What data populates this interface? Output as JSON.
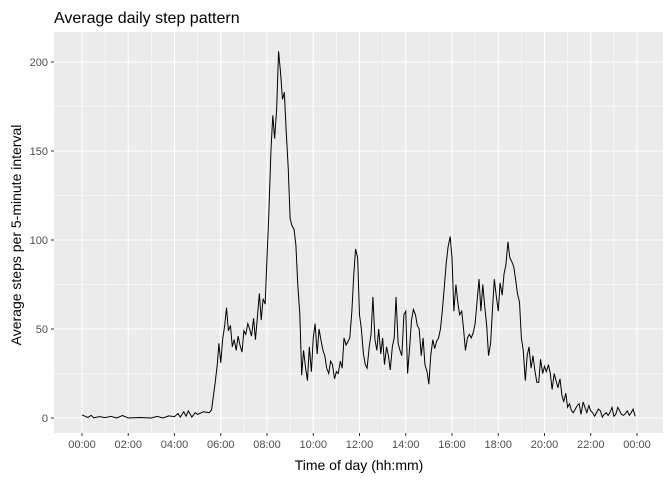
{
  "chart_data": {
    "type": "line",
    "title": "Average daily step pattern",
    "xlabel": "Time of day (hh:mm)",
    "ylabel": "Average steps per 5-minute interval",
    "x_unit": "hours",
    "xlim": [
      0,
      24
    ],
    "ylim": [
      0,
      200
    ],
    "x_ticks": [
      {
        "value": 0,
        "label": "00:00"
      },
      {
        "value": 2,
        "label": "02:00"
      },
      {
        "value": 4,
        "label": "04:00"
      },
      {
        "value": 6,
        "label": "06:00"
      },
      {
        "value": 8,
        "label": "08:00"
      },
      {
        "value": 10,
        "label": "10:00"
      },
      {
        "value": 12,
        "label": "12:00"
      },
      {
        "value": 14,
        "label": "14:00"
      },
      {
        "value": 16,
        "label": "16:00"
      },
      {
        "value": 18,
        "label": "18:00"
      },
      {
        "value": 20,
        "label": "20:00"
      },
      {
        "value": 22,
        "label": "22:00"
      },
      {
        "value": 24,
        "label": "00:00"
      }
    ],
    "y_ticks": [
      0,
      50,
      100,
      150,
      200
    ],
    "grid": true,
    "series": [
      {
        "line_color": "#000000",
        "points": [
          [
            0.0,
            1.7
          ],
          [
            0.25,
            0.3
          ],
          [
            0.4,
            1.5
          ],
          [
            0.5,
            0.1
          ],
          [
            0.75,
            0.8
          ],
          [
            1.0,
            0.2
          ],
          [
            1.25,
            0.9
          ],
          [
            1.5,
            0.0
          ],
          [
            1.75,
            1.4
          ],
          [
            2.0,
            0.0
          ],
          [
            2.5,
            0.3
          ],
          [
            3.0,
            0.0
          ],
          [
            3.25,
            0.9
          ],
          [
            3.5,
            0.0
          ],
          [
            3.75,
            1.2
          ],
          [
            4.0,
            0.8
          ],
          [
            4.15,
            2.5
          ],
          [
            4.25,
            0.5
          ],
          [
            4.4,
            3.5
          ],
          [
            4.5,
            1.0
          ],
          [
            4.6,
            4.0
          ],
          [
            4.75,
            0.5
          ],
          [
            4.9,
            3.0
          ],
          [
            5.0,
            2.0
          ],
          [
            5.25,
            3.5
          ],
          [
            5.5,
            3.0
          ],
          [
            5.6,
            4.5
          ],
          [
            5.75,
            19.0
          ],
          [
            5.85,
            30.0
          ],
          [
            5.92,
            42.0
          ],
          [
            6.0,
            31.0
          ],
          [
            6.08,
            44.0
          ],
          [
            6.17,
            52.0
          ],
          [
            6.25,
            62.0
          ],
          [
            6.33,
            49.0
          ],
          [
            6.42,
            52.0
          ],
          [
            6.5,
            40.0
          ],
          [
            6.58,
            44.0
          ],
          [
            6.67,
            38.0
          ],
          [
            6.75,
            46.0
          ],
          [
            6.83,
            41.0
          ],
          [
            6.92,
            37.0
          ],
          [
            7.0,
            49.0
          ],
          [
            7.08,
            47.0
          ],
          [
            7.17,
            53.0
          ],
          [
            7.25,
            50.0
          ],
          [
            7.33,
            46.0
          ],
          [
            7.42,
            56.0
          ],
          [
            7.5,
            44.0
          ],
          [
            7.58,
            56.0
          ],
          [
            7.67,
            70.0
          ],
          [
            7.75,
            55.0
          ],
          [
            7.83,
            67.0
          ],
          [
            7.92,
            64.0
          ],
          [
            8.0,
            90.0
          ],
          [
            8.08,
            115.0
          ],
          [
            8.17,
            150.0
          ],
          [
            8.25,
            170.0
          ],
          [
            8.33,
            157.0
          ],
          [
            8.42,
            174.0
          ],
          [
            8.5,
            206.0
          ],
          [
            8.58,
            195.0
          ],
          [
            8.67,
            179.0
          ],
          [
            8.75,
            183.0
          ],
          [
            8.83,
            161.0
          ],
          [
            8.92,
            140.0
          ],
          [
            9.0,
            112.0
          ],
          [
            9.08,
            108.0
          ],
          [
            9.17,
            106.0
          ],
          [
            9.25,
            97.0
          ],
          [
            9.33,
            75.0
          ],
          [
            9.42,
            58.0
          ],
          [
            9.5,
            24.0
          ],
          [
            9.58,
            38.0
          ],
          [
            9.67,
            28.0
          ],
          [
            9.75,
            21.0
          ],
          [
            9.83,
            40.0
          ],
          [
            9.92,
            26.0
          ],
          [
            10.0,
            45.0
          ],
          [
            10.08,
            53.0
          ],
          [
            10.17,
            36.0
          ],
          [
            10.25,
            50.0
          ],
          [
            10.33,
            44.0
          ],
          [
            10.42,
            38.0
          ],
          [
            10.5,
            35.0
          ],
          [
            10.58,
            28.0
          ],
          [
            10.67,
            25.0
          ],
          [
            10.75,
            32.0
          ],
          [
            10.83,
            30.0
          ],
          [
            10.92,
            22.0
          ],
          [
            11.0,
            26.0
          ],
          [
            11.08,
            25.0
          ],
          [
            11.17,
            32.0
          ],
          [
            11.25,
            28.0
          ],
          [
            11.33,
            45.0
          ],
          [
            11.42,
            41.0
          ],
          [
            11.5,
            43.0
          ],
          [
            11.58,
            45.0
          ],
          [
            11.67,
            60.0
          ],
          [
            11.75,
            80.0
          ],
          [
            11.83,
            95.0
          ],
          [
            11.92,
            90.0
          ],
          [
            12.0,
            58.0
          ],
          [
            12.08,
            50.0
          ],
          [
            12.17,
            36.0
          ],
          [
            12.25,
            30.0
          ],
          [
            12.33,
            28.0
          ],
          [
            12.42,
            40.0
          ],
          [
            12.5,
            47.0
          ],
          [
            12.58,
            68.0
          ],
          [
            12.67,
            44.0
          ],
          [
            12.75,
            38.0
          ],
          [
            12.83,
            50.0
          ],
          [
            12.92,
            36.0
          ],
          [
            13.0,
            45.0
          ],
          [
            13.08,
            30.0
          ],
          [
            13.17,
            40.0
          ],
          [
            13.25,
            35.0
          ],
          [
            13.33,
            27.0
          ],
          [
            13.42,
            40.0
          ],
          [
            13.5,
            45.0
          ],
          [
            13.58,
            68.0
          ],
          [
            13.67,
            42.0
          ],
          [
            13.75,
            38.0
          ],
          [
            13.83,
            35.0
          ],
          [
            13.92,
            58.0
          ],
          [
            14.0,
            60.0
          ],
          [
            14.08,
            25.0
          ],
          [
            14.17,
            40.0
          ],
          [
            14.25,
            55.0
          ],
          [
            14.33,
            61.0
          ],
          [
            14.42,
            58.0
          ],
          [
            14.5,
            52.0
          ],
          [
            14.58,
            50.0
          ],
          [
            14.67,
            35.0
          ],
          [
            14.75,
            45.0
          ],
          [
            14.83,
            30.0
          ],
          [
            14.92,
            26.0
          ],
          [
            15.0,
            19.0
          ],
          [
            15.08,
            35.0
          ],
          [
            15.17,
            44.0
          ],
          [
            15.25,
            39.0
          ],
          [
            15.33,
            43.0
          ],
          [
            15.42,
            45.0
          ],
          [
            15.5,
            50.0
          ],
          [
            15.58,
            60.0
          ],
          [
            15.67,
            74.0
          ],
          [
            15.75,
            87.0
          ],
          [
            15.83,
            96.0
          ],
          [
            15.92,
            102.0
          ],
          [
            16.0,
            90.0
          ],
          [
            16.08,
            60.0
          ],
          [
            16.17,
            75.0
          ],
          [
            16.25,
            65.0
          ],
          [
            16.33,
            58.0
          ],
          [
            16.42,
            60.0
          ],
          [
            16.5,
            50.0
          ],
          [
            16.58,
            38.0
          ],
          [
            16.67,
            45.0
          ],
          [
            16.75,
            47.0
          ],
          [
            16.83,
            45.0
          ],
          [
            16.92,
            48.0
          ],
          [
            17.0,
            53.0
          ],
          [
            17.08,
            65.0
          ],
          [
            17.17,
            78.0
          ],
          [
            17.25,
            60.0
          ],
          [
            17.33,
            75.0
          ],
          [
            17.42,
            62.0
          ],
          [
            17.5,
            52.0
          ],
          [
            17.58,
            35.0
          ],
          [
            17.67,
            42.0
          ],
          [
            17.75,
            61.0
          ],
          [
            17.83,
            78.0
          ],
          [
            17.92,
            68.0
          ],
          [
            18.0,
            60.0
          ],
          [
            18.08,
            76.0
          ],
          [
            18.17,
            69.0
          ],
          [
            18.25,
            81.0
          ],
          [
            18.33,
            86.0
          ],
          [
            18.42,
            99.0
          ],
          [
            18.5,
            90.0
          ],
          [
            18.58,
            88.0
          ],
          [
            18.67,
            85.0
          ],
          [
            18.75,
            78.0
          ],
          [
            18.83,
            70.0
          ],
          [
            18.92,
            65.0
          ],
          [
            19.0,
            45.0
          ],
          [
            19.08,
            38.0
          ],
          [
            19.17,
            21.0
          ],
          [
            19.25,
            35.0
          ],
          [
            19.33,
            40.0
          ],
          [
            19.42,
            28.0
          ],
          [
            19.5,
            35.0
          ],
          [
            19.58,
            27.0
          ],
          [
            19.67,
            20.0
          ],
          [
            19.75,
            20.0
          ],
          [
            19.83,
            33.0
          ],
          [
            19.92,
            25.0
          ],
          [
            20.0,
            29.0
          ],
          [
            20.08,
            26.0
          ],
          [
            20.17,
            30.0
          ],
          [
            20.25,
            25.0
          ],
          [
            20.33,
            16.0
          ],
          [
            20.42,
            25.0
          ],
          [
            20.5,
            21.0
          ],
          [
            20.58,
            17.0
          ],
          [
            20.67,
            22.0
          ],
          [
            20.75,
            13.0
          ],
          [
            20.83,
            9.0
          ],
          [
            20.92,
            14.0
          ],
          [
            21.0,
            6.0
          ],
          [
            21.08,
            8.0
          ],
          [
            21.17,
            4.0
          ],
          [
            21.25,
            3.0
          ],
          [
            21.33,
            5.0
          ],
          [
            21.42,
            7.0
          ],
          [
            21.5,
            8.0
          ],
          [
            21.58,
            2.0
          ],
          [
            21.67,
            9.0
          ],
          [
            21.75,
            6.0
          ],
          [
            21.83,
            3.0
          ],
          [
            21.92,
            7.0
          ],
          [
            22.0,
            4.0
          ],
          [
            22.08,
            3.0
          ],
          [
            22.17,
            1.0
          ],
          [
            22.25,
            3.0
          ],
          [
            22.33,
            5.0
          ],
          [
            22.42,
            4.0
          ],
          [
            22.5,
            0.5
          ],
          [
            22.58,
            2.0
          ],
          [
            22.67,
            3.0
          ],
          [
            22.75,
            1.5
          ],
          [
            22.83,
            3.0
          ],
          [
            22.92,
            6.0
          ],
          [
            23.0,
            1.0
          ],
          [
            23.08,
            2.0
          ],
          [
            23.17,
            6.0
          ],
          [
            23.25,
            4.0
          ],
          [
            23.33,
            2.0
          ],
          [
            23.42,
            1.5
          ],
          [
            23.5,
            2.5
          ],
          [
            23.58,
            4.0
          ],
          [
            23.67,
            1.5
          ],
          [
            23.75,
            3.0
          ],
          [
            23.83,
            5.0
          ],
          [
            23.92,
            1.0
          ]
        ]
      }
    ],
    "colors": {
      "panel_background": "#ebebeb",
      "grid_major": "#ffffff",
      "line": "#000000",
      "tick_label": "#4d4d4d"
    }
  }
}
